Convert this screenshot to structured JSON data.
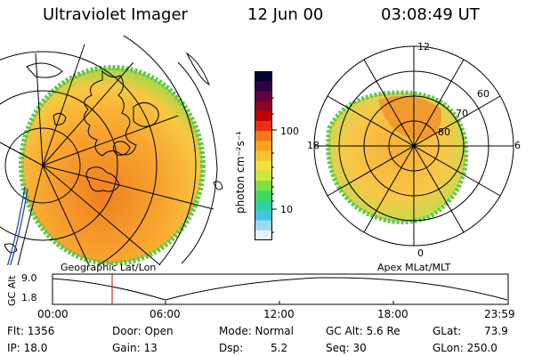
{
  "header": {
    "instrument": "Ultraviolet Imager",
    "date": "12 Jun 00",
    "time": "03:08:49 UT"
  },
  "colorbar": {
    "title": "photon cm⁻²s⁻¹",
    "ticks": [
      "100",
      "10"
    ],
    "colors": [
      "#000030",
      "#300040",
      "#600040",
      "#900020",
      "#c00000",
      "#e83010",
      "#f87818",
      "#f8a020",
      "#f8c030",
      "#f0e040",
      "#c8e840",
      "#80e040",
      "#40d860",
      "#30d0a0",
      "#40c8e0",
      "#a0d8f0",
      "#e8f0f8"
    ]
  },
  "left_panel": {
    "caption": "Geographic Lat/Lon"
  },
  "right_panel": {
    "caption": "Apex MLat/MLT",
    "mlt_labels": {
      "top": "12",
      "left": "18",
      "right": "6",
      "bottom": "0"
    },
    "lat_labels": [
      "60",
      "70",
      "80"
    ]
  },
  "altitude_plot": {
    "ylabel": "GC Alt",
    "yticks": [
      "9.0",
      "1.8"
    ],
    "xticks": [
      "00:00",
      "06:00",
      "12:00",
      "18:00",
      "23:59"
    ],
    "marker_color": "#cc0000"
  },
  "footer": {
    "row1": {
      "flt": "Flt: 1356",
      "door": "Door: Open",
      "mode": "Mode: Normal",
      "gc_alt": "GC Alt: 5.6 Re",
      "glat_label": "GLat:",
      "glat_value": "73.9"
    },
    "row2": {
      "ip": "IP: 18.0",
      "gain": "Gain: 13",
      "dsp_label": "Dsp:",
      "dsp_value": "5.2",
      "seq": "Seq: 30",
      "glon": "GLon: 250.0"
    }
  }
}
